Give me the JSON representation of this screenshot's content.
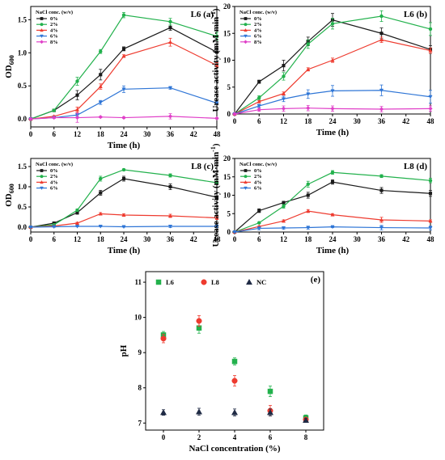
{
  "colors": {
    "0%": "#1a1a1a",
    "2%": "#22b14c",
    "4%": "#ee3b2f",
    "6%": "#2e75d6",
    "8%": "#e040c8",
    "NC": "#1f2a44"
  },
  "legend_title": "NaCl conc. (w/v)",
  "chart_data": [
    {
      "id": "a",
      "type": "line",
      "title": "L6",
      "panel_label": "(a)",
      "xlabel": "Time (h)",
      "ylabel_main": "OD",
      "ylabel_sub": "600",
      "x_ticks": [
        "0",
        "6",
        "12",
        "18",
        "24",
        "30",
        "36",
        "42",
        "48"
      ],
      "y_ticks": [
        "0.0",
        "0.5",
        "1.0",
        "1.5"
      ],
      "xlim": [
        0,
        48
      ],
      "ylim": [
        -0.12,
        1.7
      ],
      "series": [
        {
          "name": "0%",
          "marker": "square",
          "x": [
            0,
            6,
            12,
            18,
            24,
            36,
            48
          ],
          "y": [
            0,
            0.13,
            0.36,
            0.67,
            1.06,
            1.38,
            1.01
          ],
          "err": [
            0.01,
            0.02,
            0.07,
            0.08,
            0.03,
            0.04,
            0.06
          ]
        },
        {
          "name": "2%",
          "marker": "circle",
          "x": [
            0,
            6,
            12,
            18,
            24,
            36,
            48
          ],
          "y": [
            0,
            0.13,
            0.57,
            1.02,
            1.57,
            1.47,
            1.25
          ],
          "err": [
            0.01,
            0.02,
            0.06,
            0.03,
            0.04,
            0.05,
            0.06
          ]
        },
        {
          "name": "4%",
          "marker": "triangle-up",
          "x": [
            0,
            6,
            12,
            18,
            24,
            36,
            48
          ],
          "y": [
            0,
            0.04,
            0.14,
            0.49,
            0.95,
            1.16,
            0.81
          ],
          "err": [
            0.01,
            0.01,
            0.04,
            0.04,
            0.02,
            0.06,
            0.04
          ]
        },
        {
          "name": "6%",
          "marker": "triangle-down",
          "x": [
            0,
            6,
            12,
            18,
            24,
            36,
            48
          ],
          "y": [
            0,
            0.02,
            0.06,
            0.25,
            0.45,
            0.47,
            0.24
          ],
          "err": [
            0.01,
            0.01,
            0.02,
            0.03,
            0.05,
            0.02,
            0.02
          ]
        },
        {
          "name": "8%",
          "marker": "diamond",
          "x": [
            0,
            6,
            12,
            18,
            24,
            36,
            48
          ],
          "y": [
            0,
            0.02,
            0.02,
            0.03,
            0.02,
            0.04,
            0.01
          ],
          "err": [
            0.01,
            0.01,
            0.07,
            0.01,
            0.01,
            0.04,
            0.01
          ]
        }
      ]
    },
    {
      "id": "b",
      "type": "line",
      "title": "L6",
      "panel_label": "(b)",
      "xlabel": "Time (h)",
      "ylabel_main": "Urease activity (mM·min",
      "ylabel_sup": "-1",
      "ylabel_end": ")",
      "x_ticks": [
        "0",
        "6",
        "12",
        "18",
        "24",
        "30",
        "36",
        "42",
        "48"
      ],
      "y_ticks": [
        "0",
        "5",
        "10",
        "15",
        "20"
      ],
      "xlim": [
        0,
        48
      ],
      "ylim": [
        0,
        20
      ],
      "series": [
        {
          "name": "0%",
          "marker": "square",
          "x": [
            0,
            6,
            12,
            18,
            24,
            36,
            48
          ],
          "y": [
            0,
            6,
            9,
            13.5,
            17.5,
            15,
            12
          ],
          "err": [
            0.1,
            0.3,
            1.0,
            0.8,
            1.2,
            1.0,
            0.7
          ]
        },
        {
          "name": "2%",
          "marker": "circle",
          "x": [
            0,
            6,
            12,
            18,
            24,
            36,
            48
          ],
          "y": [
            0,
            3,
            7,
            13,
            16.8,
            18.2,
            15.8
          ],
          "err": [
            0.1,
            0.4,
            0.7,
            0.8,
            1.0,
            1.0,
            1.2
          ]
        },
        {
          "name": "4%",
          "marker": "triangle-up",
          "x": [
            0,
            6,
            12,
            18,
            24,
            36,
            48
          ],
          "y": [
            0,
            2.3,
            3.8,
            8.3,
            10,
            13.8,
            11.8
          ],
          "err": [
            0.1,
            0.2,
            0.3,
            0.3,
            0.4,
            0.5,
            0.5
          ]
        },
        {
          "name": "6%",
          "marker": "triangle-down",
          "x": [
            0,
            6,
            12,
            18,
            24,
            36,
            48
          ],
          "y": [
            0,
            1.5,
            2.8,
            3.7,
            4.3,
            4.4,
            3.2
          ],
          "err": [
            0.1,
            0.3,
            0.5,
            0.8,
            1.0,
            1.0,
            1.2
          ]
        },
        {
          "name": "8%",
          "marker": "diamond",
          "x": [
            0,
            6,
            12,
            18,
            24,
            36,
            48
          ],
          "y": [
            0,
            0.8,
            1.0,
            1.1,
            1.0,
            0.9,
            1.0
          ],
          "err": [
            0.1,
            0.3,
            0.5,
            0.5,
            0.5,
            0.5,
            0.5
          ]
        }
      ]
    },
    {
      "id": "c",
      "type": "line",
      "title": "L8",
      "panel_label": "(c)",
      "xlabel": "Time (h)",
      "ylabel_main": "OD",
      "ylabel_sub": "600",
      "x_ticks": [
        "0",
        "6",
        "12",
        "18",
        "24",
        "30",
        "36",
        "42",
        "48"
      ],
      "y_ticks": [
        "0.0",
        "0.5",
        "1.0",
        "1.5"
      ],
      "xlim": [
        0,
        48
      ],
      "ylim": [
        -0.12,
        1.7
      ],
      "series": [
        {
          "name": "0%",
          "marker": "square",
          "x": [
            0,
            6,
            12,
            18,
            24,
            36,
            48
          ],
          "y": [
            0,
            0.1,
            0.36,
            0.85,
            1.2,
            1.0,
            0.74
          ],
          "err": [
            0.01,
            0.02,
            0.04,
            0.06,
            0.06,
            0.07,
            0.03
          ]
        },
        {
          "name": "2%",
          "marker": "circle",
          "x": [
            0,
            6,
            12,
            18,
            24,
            36,
            48
          ],
          "y": [
            0,
            0.06,
            0.42,
            1.2,
            1.42,
            1.28,
            1.1
          ],
          "err": [
            0.01,
            0.01,
            0.03,
            0.06,
            0.02,
            0.04,
            0.04
          ]
        },
        {
          "name": "4%",
          "marker": "triangle-up",
          "x": [
            0,
            6,
            12,
            18,
            24,
            36,
            48
          ],
          "y": [
            0,
            0.03,
            0.1,
            0.33,
            0.3,
            0.28,
            0.23
          ],
          "err": [
            0.01,
            0.01,
            0.02,
            0.03,
            0.03,
            0.04,
            0.04
          ]
        },
        {
          "name": "6%",
          "marker": "triangle-down",
          "x": [
            0,
            6,
            12,
            18,
            24,
            36,
            48
          ],
          "y": [
            0,
            0.01,
            0.02,
            0.02,
            0.01,
            0.02,
            0.02
          ],
          "err": [
            0.01,
            0.01,
            0.01,
            0.01,
            0.01,
            0.03,
            0.03
          ]
        }
      ]
    },
    {
      "id": "d",
      "type": "line",
      "title": "L8",
      "panel_label": "(d)",
      "xlabel": "Time (h)",
      "ylabel_main": "Urease activity (mM·min",
      "ylabel_sup": "-1",
      "ylabel_end": ")",
      "x_ticks": [
        "0",
        "6",
        "12",
        "18",
        "24",
        "30",
        "36",
        "42",
        "48"
      ],
      "y_ticks": [
        "0",
        "5",
        "10",
        "15",
        "20"
      ],
      "xlim": [
        0,
        48
      ],
      "ylim": [
        0,
        20
      ],
      "series": [
        {
          "name": "0%",
          "marker": "square",
          "x": [
            0,
            6,
            12,
            18,
            24,
            36,
            48
          ],
          "y": [
            0,
            5.8,
            8,
            10,
            13.6,
            11.3,
            10.5
          ],
          "err": [
            0.1,
            0.5,
            0.3,
            0.8,
            0.6,
            0.8,
            0.8
          ]
        },
        {
          "name": "2%",
          "marker": "circle",
          "x": [
            0,
            6,
            12,
            18,
            24,
            36,
            48
          ],
          "y": [
            0,
            2.5,
            7,
            13,
            16.2,
            15.2,
            14
          ],
          "err": [
            0.1,
            0.2,
            0.5,
            0.8,
            0.5,
            0.4,
            0.6
          ]
        },
        {
          "name": "4%",
          "marker": "triangle-up",
          "x": [
            0,
            6,
            12,
            18,
            24,
            36,
            48
          ],
          "y": [
            0,
            1.5,
            3,
            5.7,
            4.7,
            3.3,
            3
          ],
          "err": [
            0.1,
            0.2,
            0.3,
            0.4,
            0.3,
            0.7,
            0.3
          ]
        },
        {
          "name": "6%",
          "marker": "triangle-down",
          "x": [
            0,
            6,
            12,
            18,
            24,
            36,
            48
          ],
          "y": [
            0,
            1,
            1.1,
            1.2,
            1.4,
            1.2,
            1.1
          ],
          "err": [
            0.1,
            0.4,
            0.3,
            0.4,
            0.2,
            0.6,
            0.5
          ]
        }
      ]
    },
    {
      "id": "e",
      "type": "scatter",
      "title": "",
      "panel_label": "(e)",
      "xlabel": "NaCl concentration (%)",
      "ylabel_main": "pH",
      "x_ticks": [
        "0",
        "2",
        "4",
        "6",
        "8"
      ],
      "y_ticks": [
        "7",
        "8",
        "9",
        "10",
        "11"
      ],
      "xlim": [
        -1,
        9
      ],
      "ylim": [
        6.8,
        11.3
      ],
      "series": [
        {
          "name": "L6",
          "marker": "square",
          "color_key": "2%",
          "x": [
            0,
            2,
            4,
            6,
            8
          ],
          "y": [
            9.5,
            9.7,
            8.75,
            7.9,
            7.15
          ],
          "err": [
            0.1,
            0.15,
            0.1,
            0.15,
            0.08
          ]
        },
        {
          "name": "L8",
          "marker": "circle",
          "color_key": "4%",
          "x": [
            0,
            2,
            4,
            6,
            8
          ],
          "y": [
            9.4,
            9.9,
            8.2,
            7.35,
            7.1
          ],
          "err": [
            0.12,
            0.15,
            0.15,
            0.15,
            0.05
          ]
        },
        {
          "name": "NC",
          "marker": "triangle-up",
          "color_key": "NC",
          "x": [
            0,
            2,
            4,
            6,
            8
          ],
          "y": [
            7.3,
            7.32,
            7.3,
            7.3,
            7.08
          ],
          "err": [
            0.08,
            0.1,
            0.1,
            0.1,
            0.05
          ]
        }
      ]
    }
  ]
}
